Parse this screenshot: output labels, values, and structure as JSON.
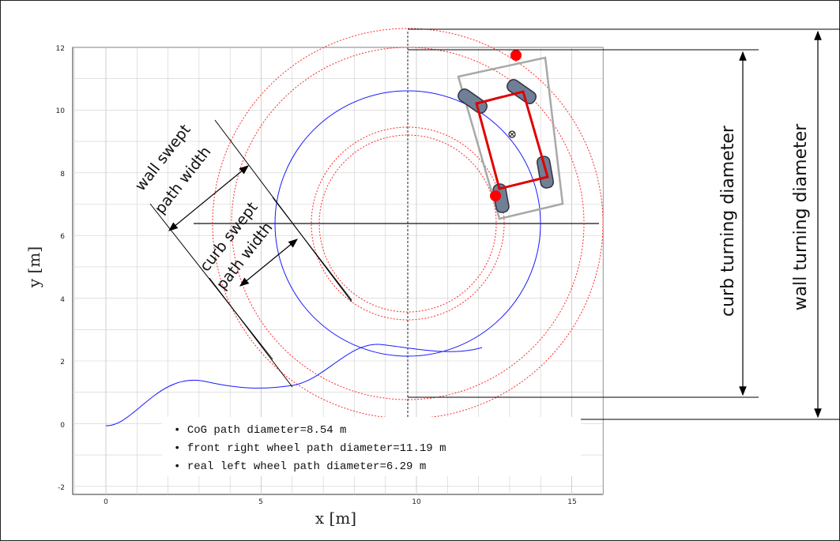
{
  "plot": {
    "xlabel": "x [m]",
    "ylabel": "y  [m]",
    "x_ticks": [
      "0",
      "5",
      "10",
      "15"
    ],
    "y_ticks": [
      "-2",
      "0",
      "2",
      "4",
      "6",
      "8",
      "10",
      "12"
    ]
  },
  "annotations": {
    "wall_swept_1": "wall swept",
    "wall_swept_2": "path width",
    "curb_swept_1": "curb swept",
    "curb_swept_2": "path width",
    "curb_turning": "curb turning diameter",
    "wall_turning": "wall turning diameter"
  },
  "legend": [
    "CoG path diameter=8.54 m",
    "front right wheel path diameter=11.19 m",
    "real left wheel path diameter=6.29 m"
  ],
  "colors": {
    "cog_path": "#1a1aff",
    "wheel_paths": "#ff2a2a",
    "vehicle_frame": "#e00000",
    "wheel_fill": "#6f7f96",
    "grid": "#cfcfcf"
  }
}
